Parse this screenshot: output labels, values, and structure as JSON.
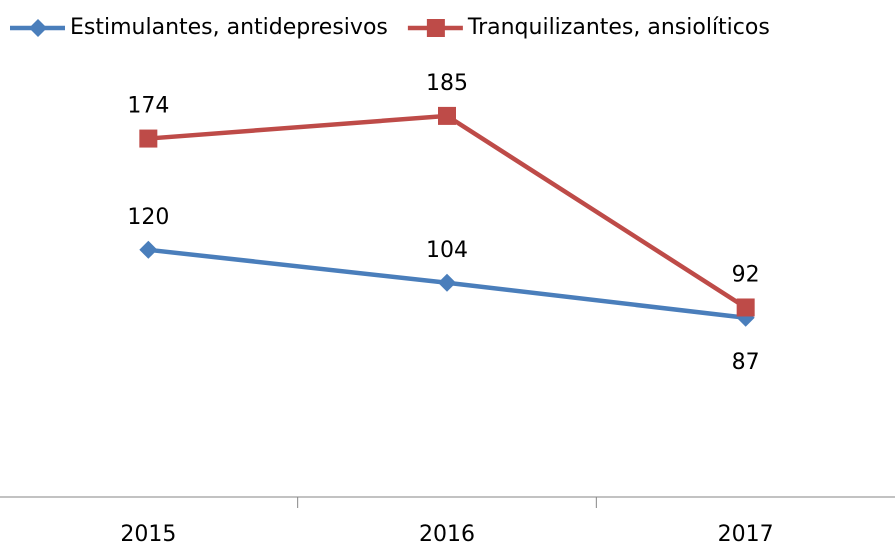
{
  "chart_data": {
    "type": "line",
    "categories": [
      "2015",
      "2016",
      "2017"
    ],
    "series": [
      {
        "name": "Estimulantes, antidepresivos",
        "color": "#4a7ebb",
        "marker": "diamond",
        "values": [
          120,
          104,
          87
        ]
      },
      {
        "name": "Tranquilizantes, ansiolíticos",
        "color": "#be4b48",
        "marker": "square",
        "values": [
          174,
          185,
          92
        ]
      }
    ],
    "ylim": [
      0,
      200
    ],
    "legend": "top"
  }
}
